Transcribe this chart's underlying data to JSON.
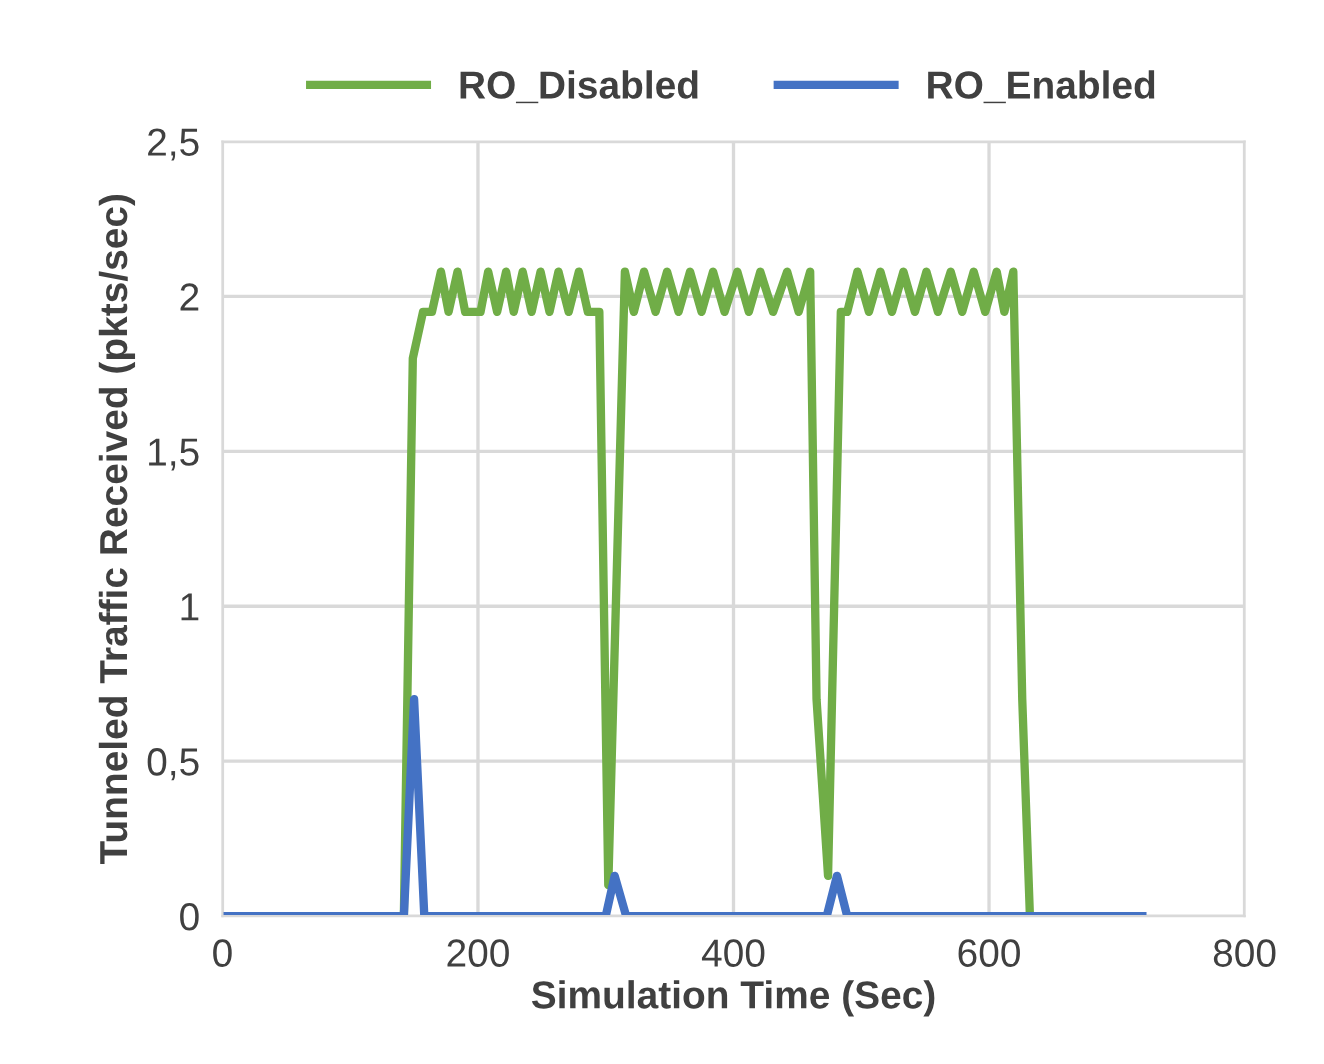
{
  "chart_data": {
    "type": "line",
    "xlabel": "Simulation Time (Sec)",
    "ylabel": "Tunneled Traffic Received (pkts/sec)",
    "series": [
      {
        "name": "RO_Disabled",
        "color": "#70ad47",
        "x": [
          0,
          142,
          149,
          157,
          164,
          171,
          177,
          184,
          190,
          202,
          208,
          215,
          222,
          228,
          235,
          242,
          249,
          256,
          263,
          271,
          279,
          286,
          295,
          302,
          315,
          322,
          330,
          339,
          348,
          357,
          366,
          375,
          384,
          393,
          403,
          412,
          421,
          431,
          442,
          451,
          460,
          465,
          474,
          484,
          489,
          497,
          506,
          515,
          524,
          533,
          542,
          551,
          560,
          570,
          579,
          588,
          597,
          606,
          612,
          619,
          626,
          632
        ],
        "values": [
          0,
          0,
          1.8,
          1.95,
          1.95,
          2.08,
          1.95,
          2.08,
          1.95,
          1.95,
          2.08,
          1.95,
          2.08,
          1.95,
          2.08,
          1.95,
          2.08,
          1.95,
          2.08,
          1.95,
          2.08,
          1.95,
          1.95,
          0.1,
          2.08,
          1.95,
          2.08,
          1.95,
          2.08,
          1.95,
          2.08,
          1.95,
          2.08,
          1.95,
          2.08,
          1.95,
          2.08,
          1.95,
          2.08,
          1.95,
          2.08,
          0.7,
          0.13,
          1.95,
          1.95,
          2.08,
          1.95,
          2.08,
          1.95,
          2.08,
          1.95,
          2.08,
          1.95,
          2.08,
          1.95,
          2.08,
          1.95,
          2.08,
          1.95,
          2.08,
          0.7,
          0
        ]
      },
      {
        "name": "RO_Enabled",
        "color": "#4472c4",
        "x": [
          0,
          142,
          150,
          158,
          300,
          307,
          316,
          473,
          481,
          489,
          720
        ],
        "values": [
          0,
          0,
          0.7,
          0,
          0,
          0.13,
          0,
          0,
          0.13,
          0,
          0
        ]
      }
    ],
    "xlim": [
      0,
      800
    ],
    "xticks": [
      0,
      200,
      400,
      600,
      800
    ],
    "ylim": [
      0,
      2.5
    ],
    "yticks": [
      0,
      {
        "value": 0.5,
        "label": "0,5"
      },
      1,
      {
        "value": 1.5,
        "label": "1,5"
      },
      2,
      {
        "value": 2.5,
        "label": "2,5"
      }
    ],
    "grid": true,
    "legend": "top",
    "marker": "none",
    "line_style": "solid"
  }
}
